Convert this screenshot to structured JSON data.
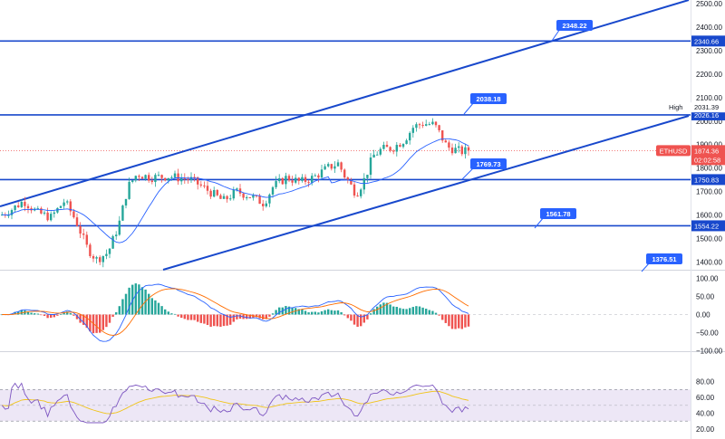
{
  "chart_data": [
    {
      "type": "candlestick",
      "panel": "price",
      "symbol": "ETHUSD",
      "last_price": "1874.36",
      "countdown": "02:02:58",
      "high_label": "High",
      "high_value": "2031.39",
      "ylim": [
        1380,
        2500
      ],
      "yticks": [
        1400,
        1500,
        1600,
        1700,
        1800,
        1900,
        2000,
        2100,
        2200,
        2300,
        2400,
        2500
      ],
      "ytick_labels": [
        "1400.00",
        "1500.00",
        "1600.00",
        "1700.00",
        "1800.00",
        "1900.00",
        "2000.00",
        "2100.00",
        "2200.00",
        "2300.00",
        "2400.00",
        "2500.00"
      ],
      "horizontal_levels": [
        {
          "value": 2340.66,
          "label": "2340.66"
        },
        {
          "value": 2026.16,
          "label": "2026.16"
        },
        {
          "value": 1750.83,
          "label": "1750.83"
        },
        {
          "value": 1554.22,
          "label": "1554.22"
        }
      ],
      "callouts": [
        {
          "label": "2348.22"
        },
        {
          "label": "2038.18"
        },
        {
          "label": "1769.73"
        },
        {
          "label": "1561.78"
        },
        {
          "label": "1376.51"
        }
      ],
      "colors": {
        "up": "#26a69a",
        "down": "#ef5350",
        "trendline": "#1848cc",
        "level": "#1848cc",
        "ma": "#2962ff",
        "price_tag": "#ef5350",
        "callout": "#2962ff"
      }
    },
    {
      "type": "macd",
      "panel": "macd",
      "ylim": [
        -100,
        100
      ],
      "yticks": [
        -100,
        -50,
        0,
        50,
        100
      ],
      "ytick_labels": [
        "−100.00",
        "−50.00",
        "0.00",
        "50.00",
        "100.00"
      ],
      "colors": {
        "macd": "#2962ff",
        "signal": "#ff6d00",
        "hist_up": "#26a69a",
        "hist_down": "#ef5350"
      }
    },
    {
      "type": "rsi",
      "panel": "rsi",
      "ylim": [
        20,
        80
      ],
      "yticks": [
        20,
        40,
        60,
        80
      ],
      "ytick_labels": [
        "20.00",
        "40.00",
        "60.00",
        "80.00"
      ],
      "band": [
        30,
        70
      ],
      "colors": {
        "rsi": "#7e57c2",
        "ma": "#f0c419",
        "band": "#ede7f6"
      }
    }
  ]
}
